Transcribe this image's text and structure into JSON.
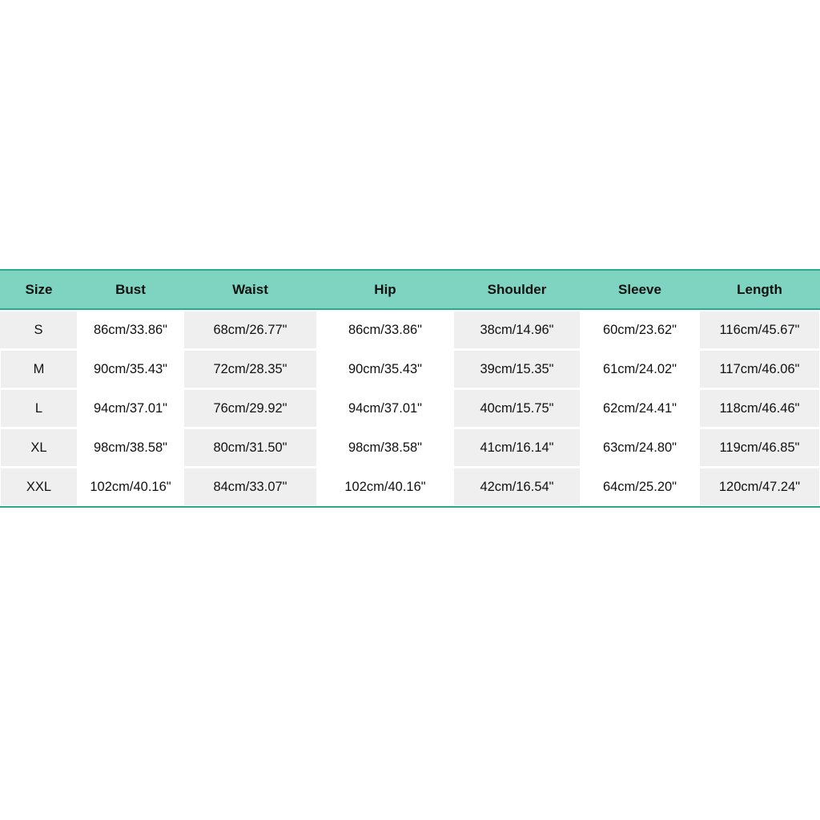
{
  "headers": [
    "Size",
    "Bust",
    "Waist",
    "Hip",
    "Shoulder",
    "Sleeve",
    "Length"
  ],
  "rows": [
    [
      "S",
      "86cm/33.86\"",
      "68cm/26.77\"",
      "86cm/33.86\"",
      "38cm/14.96\"",
      "60cm/23.62\"",
      "116cm/45.67\""
    ],
    [
      "M",
      "90cm/35.43\"",
      "72cm/28.35\"",
      "90cm/35.43\"",
      "39cm/15.35\"",
      "61cm/24.02\"",
      "117cm/46.06\""
    ],
    [
      "L",
      "94cm/37.01\"",
      "76cm/29.92\"",
      "94cm/37.01\"",
      "40cm/15.75\"",
      "62cm/24.41\"",
      "118cm/46.46\""
    ],
    [
      "XL",
      "98cm/38.58\"",
      "80cm/31.50\"",
      "98cm/38.58\"",
      "41cm/16.14\"",
      "63cm/24.80\"",
      "119cm/46.85\""
    ],
    [
      "XXL",
      "102cm/40.16\"",
      "84cm/33.07\"",
      "102cm/40.16\"",
      "42cm/16.54\"",
      "64cm/25.20\"",
      "120cm/47.24\""
    ]
  ],
  "colors": {
    "header_bg": "#7fd3c1",
    "border": "#2aaa8d",
    "shaded_cell": "#efefef"
  }
}
